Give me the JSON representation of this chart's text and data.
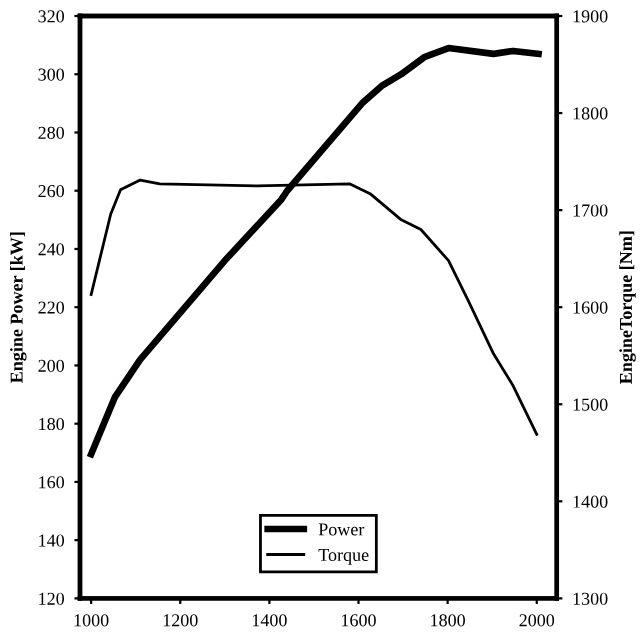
{
  "chart_data": {
    "type": "line",
    "ylabel": "Engine Power [kW]",
    "y2label": "EngineTorque [Nm]",
    "xlim": [
      975,
      2045
    ],
    "xticks": [
      1000,
      1200,
      1400,
      1600,
      1800,
      2000
    ],
    "ylim": [
      120,
      320
    ],
    "yticks": [
      120,
      140,
      160,
      180,
      200,
      220,
      240,
      260,
      280,
      300,
      320
    ],
    "y2lim": [
      1300,
      1900
    ],
    "y2ticks": [
      1300,
      1400,
      1500,
      1600,
      1700,
      1800,
      1900
    ],
    "legend": "bottom",
    "grid": false,
    "marker": "none",
    "line_style": "solid",
    "series": [
      {
        "name": "Power",
        "color": "#000000",
        "x": [
          1000,
          1053,
          1110,
          1300,
          1427,
          1440,
          1608,
          1652,
          1696,
          1749,
          1802,
          1903,
          1947,
          2004
        ],
        "values": [
          169.5,
          189,
          202,
          236,
          257,
          260,
          290,
          296,
          300,
          306,
          309,
          307,
          308,
          307
        ]
      },
      {
        "name": "Torque",
        "color": "#000000",
        "axis": "y2",
        "x": [
          1000,
          1044,
          1066,
          1110,
          1154,
          1374,
          1581,
          1626,
          1696,
          1740,
          1802,
          1846,
          1903,
          1947,
          2000
        ],
        "values": [
          1613,
          1696,
          1721,
          1731,
          1727,
          1725,
          1727,
          1717,
          1690,
          1680,
          1648,
          1607,
          1552,
          1519,
          1469
        ]
      }
    ]
  }
}
